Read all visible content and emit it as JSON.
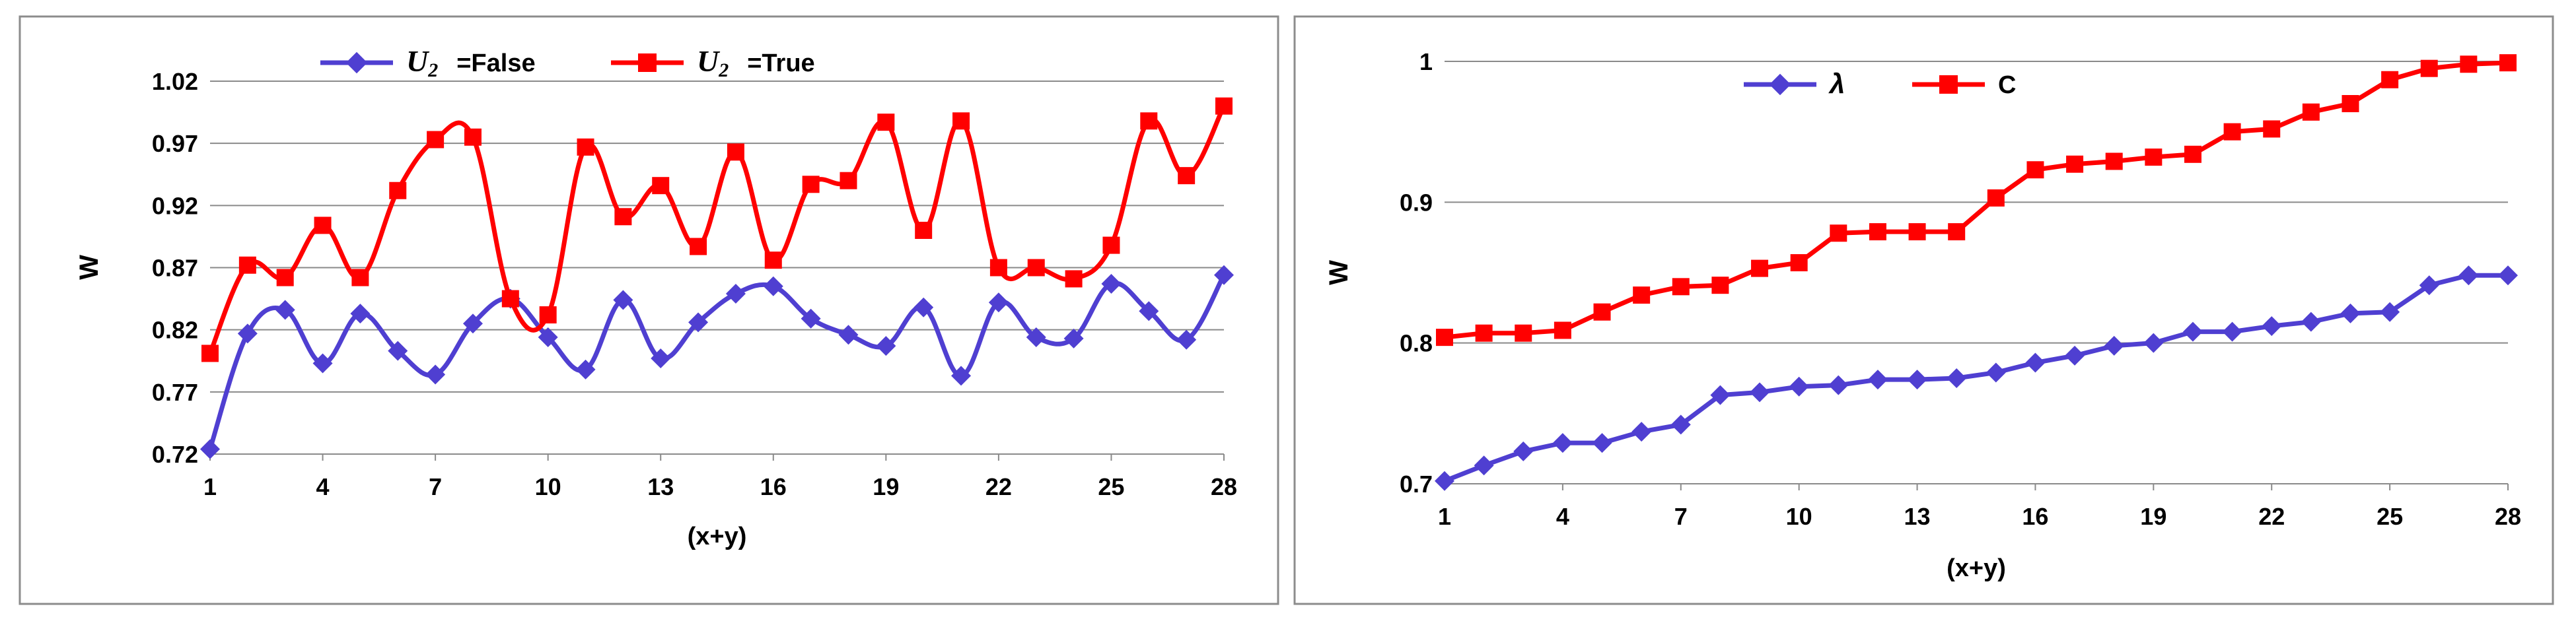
{
  "chart_data": [
    {
      "type": "line",
      "title": "",
      "xlabel": "(x+y)",
      "ylabel": "W",
      "x": [
        1,
        2,
        3,
        4,
        5,
        6,
        7,
        8,
        9,
        10,
        11,
        12,
        13,
        14,
        15,
        16,
        17,
        18,
        19,
        20,
        21,
        22,
        23,
        24,
        25,
        26,
        27,
        28
      ],
      "xticks": [
        1,
        4,
        7,
        10,
        13,
        16,
        19,
        22,
        25,
        28
      ],
      "xtick_labels": [
        "1",
        "4",
        "7",
        "10",
        "13",
        "16",
        "19",
        "22",
        "25",
        "28"
      ],
      "yticks": [
        "0.72",
        "0.77",
        "0.82",
        "0.87",
        "0.92",
        "0.97",
        "1.02"
      ],
      "ylim": [
        0.72,
        1.02
      ],
      "grid": true,
      "legend_position": "top",
      "series": [
        {
          "name": "U2 =False",
          "legend_var": "U",
          "legend_sub": "2",
          "legend_suffix": "=False",
          "color": "#4F3FD1",
          "marker": "diamond",
          "values": [
            0.724,
            0.817,
            0.836,
            0.793,
            0.833,
            0.803,
            0.784,
            0.825,
            0.845,
            0.814,
            0.788,
            0.844,
            0.797,
            0.826,
            0.849,
            0.855,
            0.829,
            0.816,
            0.807,
            0.838,
            0.783,
            0.842,
            0.814,
            0.813,
            0.857,
            0.835,
            0.812,
            0.864
          ]
        },
        {
          "name": "U2 =True",
          "legend_var": "U",
          "legend_sub": "2",
          "legend_suffix": "=True",
          "color": "#FF0000",
          "marker": "square",
          "values": [
            0.801,
            0.872,
            0.862,
            0.904,
            0.862,
            0.932,
            0.973,
            0.975,
            0.845,
            0.832,
            0.967,
            0.911,
            0.936,
            0.887,
            0.963,
            0.876,
            0.937,
            0.94,
            0.987,
            0.9,
            0.988,
            0.87,
            0.87,
            0.861,
            0.888,
            0.988,
            0.944,
            1.0
          ]
        }
      ]
    },
    {
      "type": "line",
      "title": "",
      "xlabel": "(x+y)",
      "ylabel": "W",
      "x": [
        1,
        2,
        3,
        4,
        5,
        6,
        7,
        8,
        9,
        10,
        11,
        12,
        13,
        14,
        15,
        16,
        17,
        18,
        19,
        20,
        21,
        22,
        23,
        24,
        25,
        26,
        27,
        28
      ],
      "xticks": [
        1,
        4,
        7,
        10,
        13,
        16,
        19,
        22,
        25,
        28
      ],
      "xtick_labels": [
        "1",
        "4",
        "7",
        "10",
        "13",
        "16",
        "19",
        "22",
        "25",
        "28"
      ],
      "yticks": [
        "0.7",
        "0.8",
        "0.9",
        "1"
      ],
      "ylim": [
        0.7,
        1.0
      ],
      "grid": true,
      "legend_position": "top",
      "series": [
        {
          "name": "λ",
          "color": "#4F3FD1",
          "marker": "diamond",
          "values": [
            0.702,
            0.713,
            0.723,
            0.729,
            0.729,
            0.737,
            0.742,
            0.763,
            0.765,
            0.769,
            0.77,
            0.774,
            0.774,
            0.775,
            0.779,
            0.786,
            0.791,
            0.798,
            0.8,
            0.808,
            0.808,
            0.812,
            0.815,
            0.821,
            0.822,
            0.841,
            0.848,
            0.848
          ]
        },
        {
          "name": "C",
          "color": "#FF0000",
          "marker": "square",
          "values": [
            0.804,
            0.807,
            0.807,
            0.809,
            0.822,
            0.834,
            0.84,
            0.841,
            0.853,
            0.857,
            0.878,
            0.879,
            0.879,
            0.879,
            0.903,
            0.923,
            0.927,
            0.929,
            0.932,
            0.934,
            0.95,
            0.952,
            0.964,
            0.97,
            0.987,
            0.995,
            0.998,
            0.999
          ]
        }
      ]
    }
  ]
}
